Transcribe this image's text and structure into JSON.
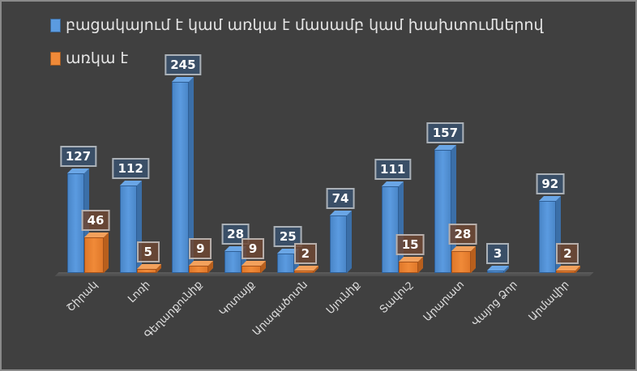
{
  "chart_data": {
    "type": "bar",
    "style": "3d-clustered-column",
    "title": "",
    "xlabel": "",
    "ylabel": "",
    "grid": false,
    "legend_position": "top-left",
    "categories": [
      "Շիրակ",
      "Լոռի",
      "Գեղարքունիք",
      "Կոտայք",
      "Արագածոտն",
      "Սյունիք",
      "Տավուշ",
      "Արարատ",
      "Վայոց Ձոր",
      "Արմավիր"
    ],
    "series": [
      {
        "name": "բացակայում է կամ առկա է մասամբ կամ խախտումներով",
        "color": "#5b9be0",
        "values": [
          127,
          112,
          245,
          28,
          25,
          74,
          111,
          157,
          3,
          92
        ]
      },
      {
        "name": "առկա է",
        "color": "#f08a38",
        "values": [
          46,
          5,
          9,
          9,
          2,
          null,
          15,
          28,
          null,
          2
        ]
      }
    ],
    "ylim": [
      0,
      250
    ]
  },
  "legend": {
    "items": [
      {
        "label": "բացակայում է կամ առկա է մասամբ կամ խախտումներով",
        "color": "#5b9be0"
      },
      {
        "label": "առկա է",
        "color": "#f08a38"
      }
    ]
  },
  "colors": {
    "background": "#404040",
    "blue": "#5b9be0",
    "orange": "#f08a38",
    "text": "#e6e6e6"
  }
}
